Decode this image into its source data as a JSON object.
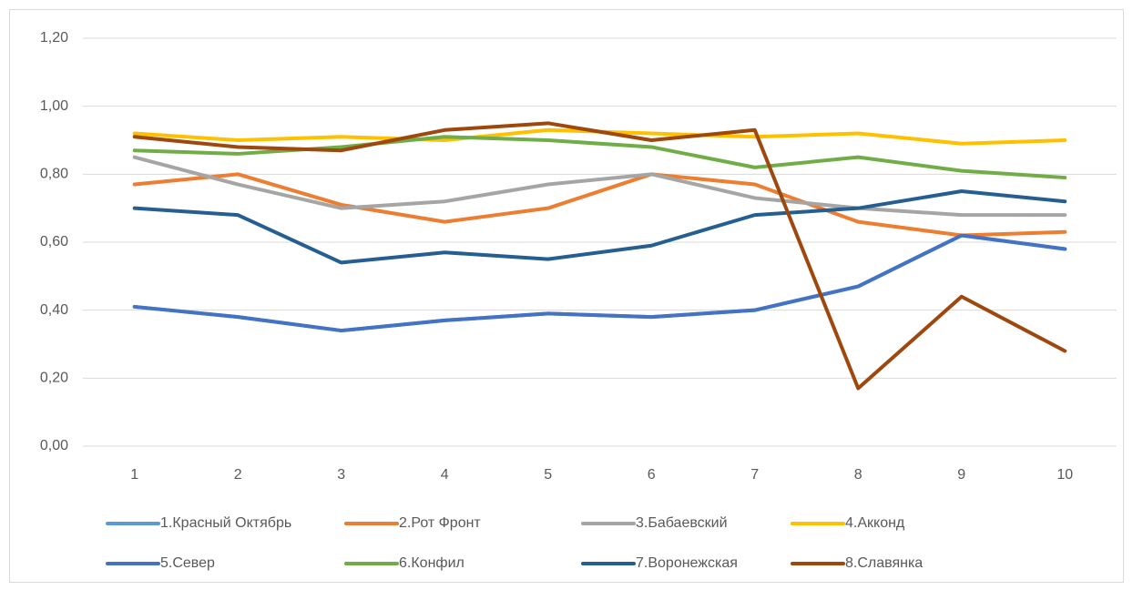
{
  "chart_data": {
    "type": "line",
    "categories": [
      "1",
      "2",
      "3",
      "4",
      "5",
      "6",
      "7",
      "8",
      "9",
      "10"
    ],
    "series": [
      {
        "name": "1.Красный Октябрь",
        "color": "#5B9BD5",
        "values": [
          0.41,
          0.38,
          0.34,
          0.37,
          0.39,
          0.38,
          0.4,
          0.47,
          0.62,
          0.58
        ]
      },
      {
        "name": "2.Рот Фронт",
        "color": "#ED7D31",
        "values": [
          0.77,
          0.8,
          0.71,
          0.66,
          0.7,
          0.8,
          0.77,
          0.66,
          0.62,
          0.63
        ]
      },
      {
        "name": "3.Бабаевский",
        "color": "#A5A5A5",
        "values": [
          0.85,
          0.77,
          0.7,
          0.72,
          0.77,
          0.8,
          0.73,
          0.7,
          0.68,
          0.68
        ]
      },
      {
        "name": "4.Акконд",
        "color": "#FFC000",
        "values": [
          0.92,
          0.9,
          0.91,
          0.9,
          0.93,
          0.92,
          0.91,
          0.92,
          0.89,
          0.9
        ]
      },
      {
        "name": "5.Север",
        "color": "#4472C4",
        "values": [
          0.41,
          0.38,
          0.34,
          0.37,
          0.39,
          0.38,
          0.4,
          0.47,
          0.62,
          0.58
        ]
      },
      {
        "name": "6.Конфил",
        "color": "#70AD47",
        "values": [
          0.87,
          0.86,
          0.88,
          0.91,
          0.9,
          0.88,
          0.82,
          0.85,
          0.81,
          0.79
        ]
      },
      {
        "name": "7.Воронежская",
        "color": "#255E91",
        "values": [
          0.7,
          0.68,
          0.54,
          0.57,
          0.55,
          0.59,
          0.68,
          0.7,
          0.75,
          0.72
        ]
      },
      {
        "name": "8.Славянка",
        "color": "#9E480E",
        "values": [
          0.91,
          0.88,
          0.87,
          0.93,
          0.95,
          0.9,
          0.93,
          0.17,
          0.44,
          0.28
        ]
      }
    ],
    "ylim": [
      0,
      1.2
    ],
    "yticks": [
      {
        "value": 0,
        "label": "0,00"
      },
      {
        "value": 0.2,
        "label": "0,20"
      },
      {
        "value": 0.4,
        "label": "0,40"
      },
      {
        "value": 0.6,
        "label": "0,60"
      },
      {
        "value": 0.8,
        "label": "0,80"
      },
      {
        "value": 1.0,
        "label": "1,00"
      },
      {
        "value": 1.2,
        "label": "1,20"
      }
    ],
    "grid": true,
    "legend": "bottom"
  }
}
